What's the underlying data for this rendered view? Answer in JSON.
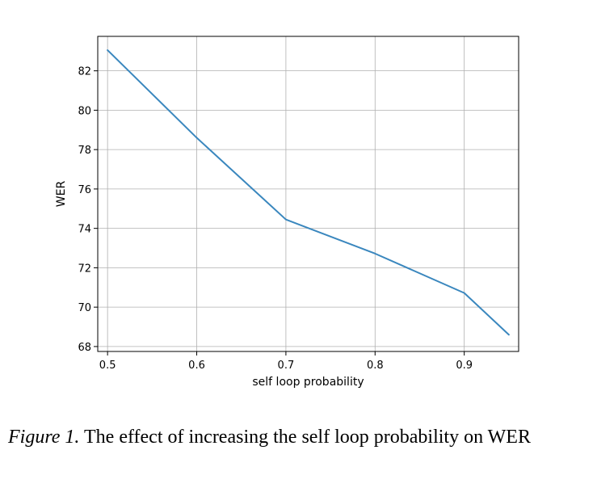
{
  "chart_data": {
    "type": "line",
    "xlabel": "self loop probability",
    "ylabel": "WER",
    "xlim": [
      0.489,
      0.961
    ],
    "ylim": [
      67.75,
      83.75
    ],
    "xticks": [
      0.5,
      0.6,
      0.7,
      0.8,
      0.9
    ],
    "xtick_labels": [
      "0.5",
      "0.6",
      "0.7",
      "0.8",
      "0.9"
    ],
    "yticks": [
      68,
      70,
      72,
      74,
      76,
      78,
      80,
      82
    ],
    "ytick_labels": [
      "68",
      "70",
      "72",
      "74",
      "76",
      "78",
      "80",
      "82"
    ],
    "grid": true,
    "series": [
      {
        "color": "#3a87be",
        "x": [
          0.5,
          0.6,
          0.7,
          0.8,
          0.9,
          0.95
        ],
        "y": [
          83.05,
          78.6,
          74.45,
          72.72,
          70.72,
          68.6
        ]
      }
    ]
  },
  "caption": {
    "label": "Figure 1.",
    "text": "The effect of increasing the self loop probability on WER"
  }
}
